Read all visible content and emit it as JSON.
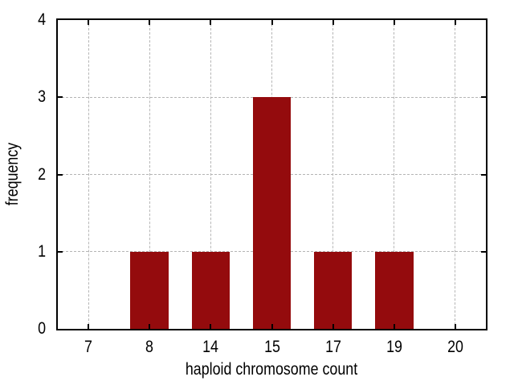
{
  "chart_data": {
    "type": "bar",
    "title": "",
    "categories": [
      "7",
      "8",
      "14",
      "15",
      "17",
      "19",
      "20"
    ],
    "values": [
      0,
      1,
      1,
      3,
      1,
      1,
      0
    ],
    "xlabel": "haploid chromosome count",
    "ylabel": "frequency",
    "ylim": [
      0,
      4
    ],
    "yticks": [
      0,
      1,
      2,
      3,
      4
    ],
    "bar_width_fraction": 0.625,
    "bar_color": "#940b0d",
    "grid_color": "#b5b5b5",
    "axis_color": "#000000",
    "background_color": "#ffffff",
    "grid_style": "dashed",
    "grid_axes": "both",
    "tick_direction": "in",
    "border": "box",
    "legend": "none"
  }
}
